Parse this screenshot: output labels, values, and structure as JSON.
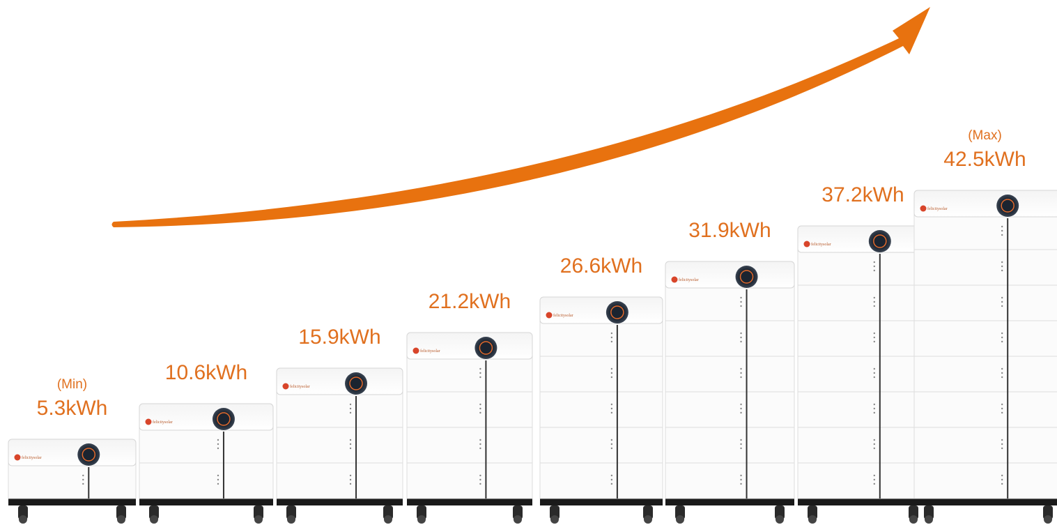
{
  "stacks": [
    {
      "note": "(Min)",
      "capacity": "5.3kWh"
    },
    {
      "capacity": "10.6kWh"
    },
    {
      "capacity": "15.9kWh"
    },
    {
      "capacity": "21.2kWh"
    },
    {
      "capacity": "26.6kWh"
    },
    {
      "capacity": "31.9kWh"
    },
    {
      "capacity": "37.2kWh"
    },
    {
      "note": "(Max)",
      "capacity": "42.5kWh"
    }
  ],
  "brand": "felicitysolar"
}
